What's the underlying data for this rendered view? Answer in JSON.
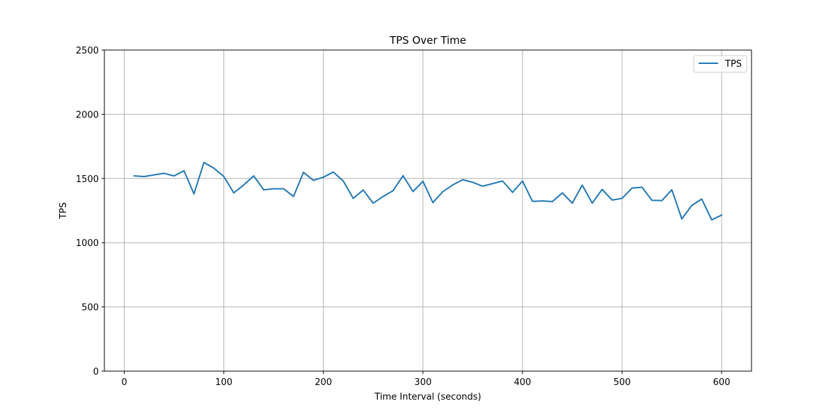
{
  "chart_data": {
    "type": "line",
    "title": "TPS Over Time",
    "xlabel": "Time Interval (seconds)",
    "ylabel": "TPS",
    "xlim": [
      -20,
      630
    ],
    "ylim": [
      0,
      2500
    ],
    "x_ticks": [
      0,
      100,
      200,
      300,
      400,
      500,
      600
    ],
    "y_ticks": [
      0,
      500,
      1000,
      1500,
      2000,
      2500
    ],
    "grid": true,
    "legend_position": "top-right",
    "series": [
      {
        "name": "TPS",
        "color": "#1f77b4",
        "x": [
          10,
          20,
          30,
          40,
          50,
          60,
          70,
          80,
          90,
          100,
          110,
          120,
          130,
          140,
          150,
          160,
          170,
          180,
          190,
          200,
          210,
          220,
          230,
          240,
          250,
          260,
          270,
          280,
          290,
          300,
          310,
          320,
          330,
          340,
          350,
          360,
          370,
          380,
          390,
          400,
          410,
          420,
          430,
          440,
          450,
          460,
          470,
          480,
          490,
          500,
          510,
          520,
          530,
          540,
          550,
          560,
          570,
          580,
          590,
          600
        ],
        "y": [
          1520,
          1515,
          1528,
          1540,
          1520,
          1560,
          1380,
          1625,
          1580,
          1515,
          1388,
          1450,
          1520,
          1412,
          1420,
          1420,
          1360,
          1548,
          1485,
          1510,
          1550,
          1480,
          1345,
          1410,
          1308,
          1360,
          1405,
          1522,
          1398,
          1478,
          1312,
          1398,
          1450,
          1490,
          1470,
          1440,
          1460,
          1480,
          1392,
          1480,
          1322,
          1325,
          1320,
          1388,
          1308,
          1448,
          1308,
          1415,
          1332,
          1345,
          1425,
          1432,
          1330,
          1328,
          1412,
          1185,
          1290,
          1340,
          1178,
          1215
        ]
      }
    ]
  }
}
